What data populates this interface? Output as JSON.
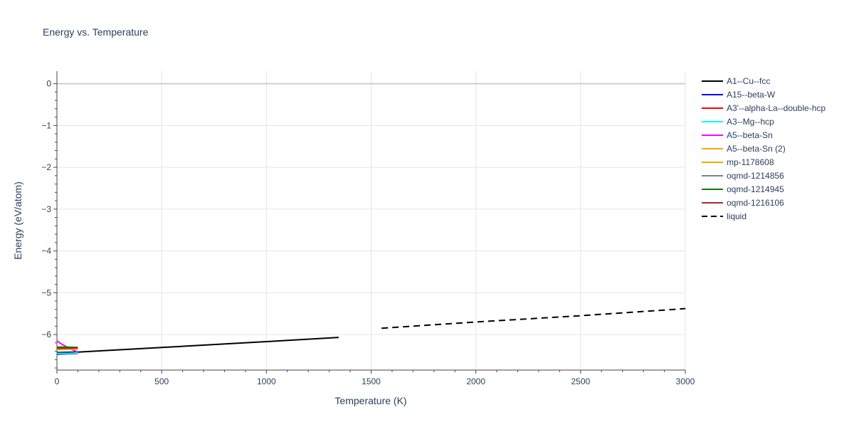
{
  "chart_data": {
    "type": "line",
    "title": "Energy vs. Temperature",
    "xlabel": "Temperature (K)",
    "ylabel": "Energy (eV/atom)",
    "xlim": [
      0,
      3000
    ],
    "ylim": [
      -6.85,
      0.3
    ],
    "xticks": [
      0,
      500,
      1000,
      1500,
      2000,
      2500,
      3000
    ],
    "yticks": [
      0,
      -1,
      -2,
      -3,
      -4,
      -5,
      -6
    ],
    "xtick_labels": [
      "0",
      "500",
      "1000",
      "1500",
      "2000",
      "2500",
      "3000"
    ],
    "ytick_labels": [
      "0",
      "−1",
      "−2",
      "−3",
      "−4",
      "−5",
      "−6"
    ],
    "grid": true,
    "legend_position": "right",
    "series": [
      {
        "name": "A1--Cu--fcc",
        "color": "#000000",
        "dash": "solid",
        "x": [
          0,
          100,
          500,
          1000,
          1345
        ],
        "y": [
          -6.43,
          -6.42,
          -6.31,
          -6.17,
          -6.07
        ]
      },
      {
        "name": "A15--beta-W",
        "color": "#0000ff",
        "dash": "solid",
        "x": [
          0,
          50,
          100
        ],
        "y": [
          -6.47,
          -6.46,
          -6.45
        ]
      },
      {
        "name": "A3'--alpha-La--double-hcp",
        "color": "#ff0000",
        "dash": "solid",
        "x": [
          0,
          50,
          100
        ],
        "y": [
          -6.32,
          -6.31,
          -6.31
        ]
      },
      {
        "name": "A3--Mg--hcp",
        "color": "#00ffff",
        "dash": "solid",
        "x": [
          0,
          50,
          100
        ],
        "y": [
          -6.45,
          -6.45,
          -6.44
        ]
      },
      {
        "name": "A5--beta-Sn",
        "color": "#ff00ff",
        "dash": "solid",
        "x": [
          0,
          20,
          40,
          60,
          80,
          100
        ],
        "y": [
          -6.15,
          -6.22,
          -6.28,
          -6.33,
          -6.38,
          -6.42
        ]
      },
      {
        "name": "A5--beta-Sn (2)",
        "color": "#ffa500",
        "dash": "solid",
        "x": [
          0,
          50,
          100
        ],
        "y": [
          -6.35,
          -6.34,
          -6.34
        ]
      },
      {
        "name": "mp-1178608",
        "color": "#ffa500",
        "dash": "solid",
        "x": [
          0,
          50,
          100
        ],
        "y": [
          -6.36,
          -6.35,
          -6.35
        ]
      },
      {
        "name": "oqmd-1214856",
        "color": "#808080",
        "dash": "solid",
        "x": [
          0,
          50,
          100
        ],
        "y": [
          -6.31,
          -6.31,
          -6.31
        ]
      },
      {
        "name": "oqmd-1214945",
        "color": "#008000",
        "dash": "solid",
        "x": [
          0,
          50,
          100
        ],
        "y": [
          -6.3,
          -6.3,
          -6.31
        ]
      },
      {
        "name": "oqmd-1216106",
        "color": "#a52a2a",
        "dash": "solid",
        "x": [
          0,
          50,
          100
        ],
        "y": [
          -6.33,
          -6.33,
          -6.32
        ]
      },
      {
        "name": "liquid",
        "color": "#000000",
        "dash": "dash",
        "x": [
          1550,
          2000,
          2500,
          3000
        ],
        "y": [
          -5.85,
          -5.7,
          -5.55,
          -5.38
        ]
      }
    ]
  }
}
